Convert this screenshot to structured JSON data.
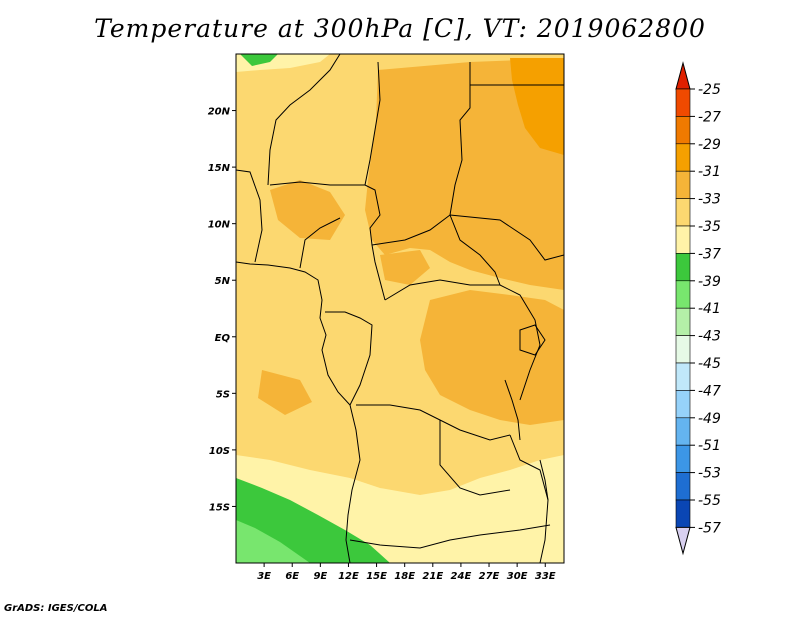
{
  "title": "Temperature at 300hPa [C], VT: 2019062800",
  "credit": "GrADS: IGES/COLA",
  "map": {
    "lon_range": [
      0,
      35
    ],
    "lat_range": [
      -20,
      25
    ],
    "lon_ticks": [
      {
        "lon": 3,
        "label": "3E"
      },
      {
        "lon": 6,
        "label": "6E"
      },
      {
        "lon": 9,
        "label": "9E"
      },
      {
        "lon": 12,
        "label": "12E"
      },
      {
        "lon": 15,
        "label": "15E"
      },
      {
        "lon": 18,
        "label": "18E"
      },
      {
        "lon": 21,
        "label": "21E"
      },
      {
        "lon": 24,
        "label": "24E"
      },
      {
        "lon": 27,
        "label": "27E"
      },
      {
        "lon": 30,
        "label": "30E"
      },
      {
        "lon": 33,
        "label": "33E"
      }
    ],
    "lat_ticks": [
      {
        "lat": 20,
        "label": "20N"
      },
      {
        "lat": 15,
        "label": "15N"
      },
      {
        "lat": 10,
        "label": "10N"
      },
      {
        "lat": 5,
        "label": "5N"
      },
      {
        "lat": 0,
        "label": "EQ"
      },
      {
        "lat": -5,
        "label": "5S"
      },
      {
        "lat": -10,
        "label": "10S"
      },
      {
        "lat": -15,
        "label": "15S"
      }
    ]
  },
  "colorbar": {
    "labels": [
      "-25",
      "-27",
      "-29",
      "-31",
      "-33",
      "-35",
      "-37",
      "-39",
      "-41",
      "-43",
      "-45",
      "-47",
      "-49",
      "-51",
      "-53",
      "-55",
      "-57"
    ],
    "colors": [
      "#f04a00",
      "#f07a00",
      "#f5a000",
      "#f5b438",
      "#fcd870",
      "#fff3a8",
      "#3cc83c",
      "#78e66e",
      "#b4f0a8",
      "#e6fae6",
      "#c0e8fa",
      "#96d2fa",
      "#64b4f0",
      "#3c96e6",
      "#1e6ed2",
      "#0a46b4",
      "#0a1e78"
    ],
    "top_color": "#e02000",
    "bottom_color": "#d8d0f0"
  }
}
